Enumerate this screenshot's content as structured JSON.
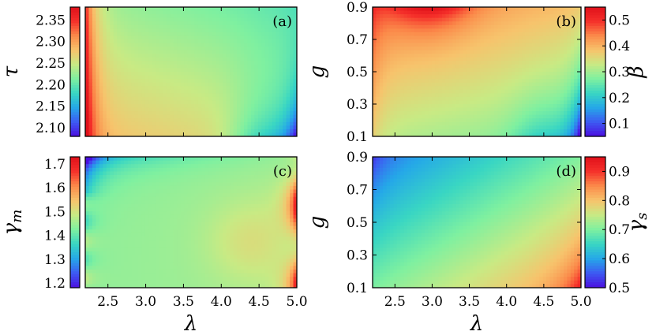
{
  "figure": {
    "colormap": [
      "#4b0fe0",
      "#3d5bf2",
      "#25a8e8",
      "#39d6c3",
      "#7ff0a0",
      "#c8ea84",
      "#f7c36c",
      "#fb8a4a",
      "#f5302a",
      "#e0101a"
    ]
  },
  "chart_data": [
    {
      "type": "heatmap",
      "panel_label": "(a)",
      "xlabel": "",
      "ylabel": "τ",
      "xlim": [
        2.2,
        5.0
      ],
      "ylim": [
        2.08,
        2.38
      ],
      "x_ticks": [],
      "y_ticks": [
        "2.10",
        "2.15",
        "2.20",
        "2.25",
        "2.30",
        "2.35"
      ],
      "colorbar": {
        "label": "",
        "range": [
          2.08,
          2.38
        ],
        "ticks": []
      },
      "field": {
        "base": 2.25,
        "left_value": 2.38,
        "low_corner_value": 2.08
      }
    },
    {
      "type": "heatmap",
      "panel_label": "(b)",
      "xlabel": "",
      "ylabel": "g",
      "xlim": [
        2.2,
        5.0
      ],
      "ylim": [
        0.1,
        0.9
      ],
      "x_ticks": [],
      "y_ticks": [
        "0.1",
        "0.3",
        "0.5",
        "0.7",
        "0.9"
      ],
      "colorbar": {
        "label": "β",
        "range": [
          0.05,
          0.55
        ],
        "ticks": [
          "0.1",
          "0.2",
          "0.3",
          "0.4",
          "0.5"
        ]
      },
      "field": {
        "base": 0.32,
        "top_peak": 0.55,
        "low_corner_value": 0.06
      }
    },
    {
      "type": "heatmap",
      "panel_label": "(c)",
      "xlabel": "λ",
      "ylabel": "γm",
      "xlim": [
        2.2,
        5.0
      ],
      "ylim": [
        1.18,
        1.73
      ],
      "x_ticks": [
        "2.5",
        "3.0",
        "3.5",
        "4.0",
        "4.5",
        "5.0"
      ],
      "y_ticks": [
        "1.2",
        "1.3",
        "1.4",
        "1.5",
        "1.6",
        "1.7"
      ],
      "colorbar": {
        "label": "",
        "range": [
          1.18,
          1.73
        ],
        "ticks": []
      },
      "field": {
        "base": 1.45,
        "upper_left_value": 1.19,
        "right_edge_value": 1.72
      }
    },
    {
      "type": "heatmap",
      "panel_label": "(d)",
      "xlabel": "λ",
      "ylabel": "g",
      "xlim": [
        2.2,
        5.0
      ],
      "ylim": [
        0.1,
        0.9
      ],
      "x_ticks": [
        "2.5",
        "3.0",
        "3.5",
        "4.0",
        "4.5",
        "5.0"
      ],
      "y_ticks": [
        "0.1",
        "0.3",
        "0.5",
        "0.7",
        "0.9"
      ],
      "colorbar": {
        "label": "γs",
        "range": [
          0.5,
          0.95
        ],
        "ticks": [
          "0.5",
          "0.6",
          "0.7",
          "0.8",
          "0.9"
        ]
      },
      "field": {
        "upper_left_value": 0.57,
        "lower_right_value": 0.95
      }
    }
  ]
}
